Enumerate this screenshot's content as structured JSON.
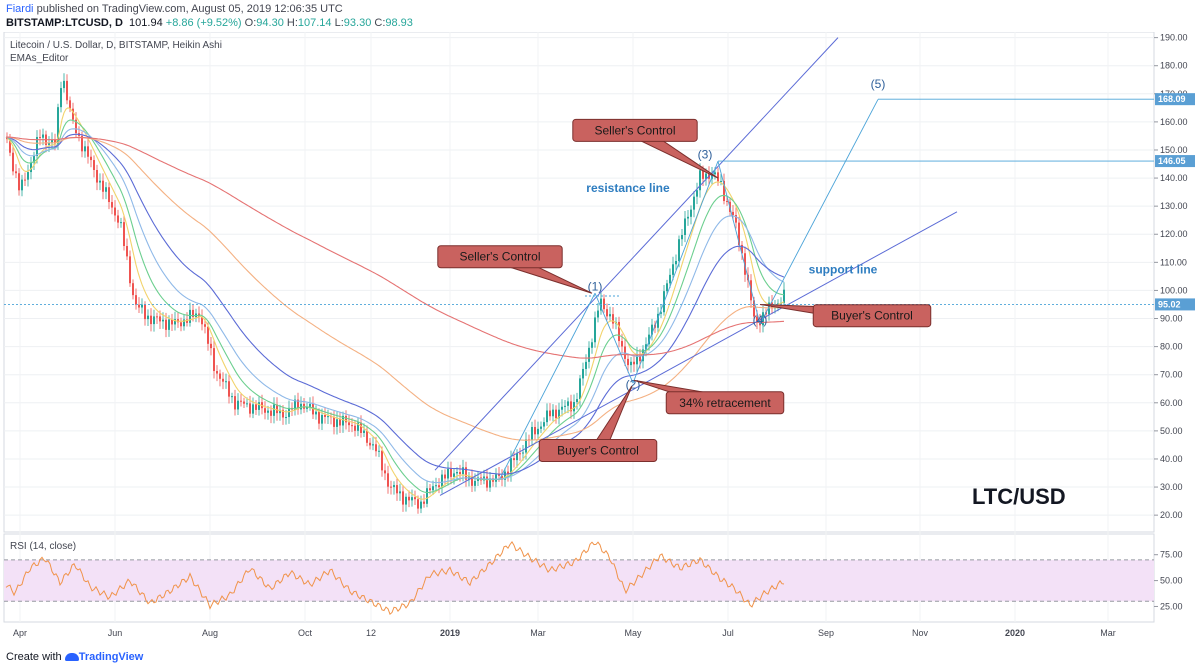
{
  "header": {
    "user": "Fiardi",
    "published_text": "published on TradingView.com, August 05, 2019 12:06:35 UTC",
    "symbol": "BITSTAMP:LTCUSD, D",
    "price": "101.94",
    "change": "+8.86 (+9.52%)",
    "o_label": "O:",
    "o_value": "94.30",
    "h_label": "H:",
    "h_value": "107.14",
    "l_label": "L:",
    "l_value": "93.30",
    "c_label": "C:",
    "c_value": "98.93"
  },
  "chart_title": "Litecoin / U.S. Dollar, D, BITSTAMP, Heikin Ashi",
  "indicator_label": "EMAs_Editor",
  "rsi_label": "RSI (14, close)",
  "big_label": "LTC/USD",
  "footer": {
    "prefix": "Create with",
    "brand": "TradingView"
  },
  "colors": {
    "up": "#26a69a",
    "down": "#ef5350",
    "callout_fill": "#c9625f",
    "callout_stroke": "#7b2f2d",
    "line_blue": "#5b6bd6",
    "fib_blue": "#4aa3d8",
    "rsi_line": "#f0934a",
    "rsi_band": "#f3e1f7",
    "annotation_text": "#2e7dc0"
  },
  "chart_data": {
    "type": "line",
    "title": "Litecoin / U.S. Dollar, D, BITSTAMP, Heikin Ashi",
    "price_axis": {
      "ticks": [
        20,
        30,
        40,
        50,
        60,
        70,
        80,
        90,
        100,
        110,
        120,
        130,
        140,
        150,
        160,
        170,
        180,
        190
      ],
      "ylim": [
        14,
        192
      ]
    },
    "x_ticks": [
      "Apr",
      "Jun",
      "Aug",
      "Oct",
      "12",
      "2019",
      "Mar",
      "May",
      "Jul",
      "Sep",
      "Nov",
      "2020",
      "Mar"
    ],
    "price_series": {
      "name": "LTCUSD",
      "points": [
        [
          0,
          163
        ],
        [
          20,
          135
        ],
        [
          40,
          155
        ],
        [
          55,
          152
        ],
        [
          62,
          178
        ],
        [
          72,
          160
        ],
        [
          95,
          142
        ],
        [
          120,
          124
        ],
        [
          135,
          95
        ],
        [
          150,
          90
        ],
        [
          175,
          88
        ],
        [
          200,
          92
        ],
        [
          215,
          72
        ],
        [
          235,
          60
        ],
        [
          260,
          58
        ],
        [
          285,
          56
        ],
        [
          300,
          60
        ],
        [
          320,
          55
        ],
        [
          355,
          52
        ],
        [
          375,
          44
        ],
        [
          390,
          30
        ],
        [
          405,
          26
        ],
        [
          420,
          24
        ],
        [
          435,
          31
        ],
        [
          455,
          36
        ],
        [
          475,
          32
        ],
        [
          500,
          33
        ],
        [
          515,
          40
        ],
        [
          530,
          48
        ],
        [
          550,
          56
        ],
        [
          575,
          60
        ],
        [
          588,
          78
        ],
        [
          600,
          96
        ],
        [
          612,
          90
        ],
        [
          630,
          72
        ],
        [
          645,
          80
        ],
        [
          660,
          93
        ],
        [
          680,
          118
        ],
        [
          700,
          140
        ],
        [
          712,
          142
        ],
        [
          720,
          138
        ],
        [
          735,
          124
        ],
        [
          745,
          108
        ],
        [
          755,
          88
        ],
        [
          765,
          92
        ],
        [
          775,
          95
        ],
        [
          785,
          98
        ]
      ]
    },
    "rsi": {
      "ticks": [
        25,
        50,
        75
      ],
      "ylim": [
        10,
        95
      ],
      "band": [
        30,
        70
      ],
      "points": [
        [
          0,
          52
        ],
        [
          15,
          38
        ],
        [
          30,
          62
        ],
        [
          45,
          72
        ],
        [
          60,
          48
        ],
        [
          75,
          66
        ],
        [
          90,
          44
        ],
        [
          110,
          34
        ],
        [
          130,
          50
        ],
        [
          150,
          28
        ],
        [
          170,
          40
        ],
        [
          190,
          54
        ],
        [
          210,
          26
        ],
        [
          230,
          36
        ],
        [
          250,
          62
        ],
        [
          270,
          42
        ],
        [
          290,
          58
        ],
        [
          310,
          46
        ],
        [
          330,
          60
        ],
        [
          350,
          40
        ],
        [
          370,
          30
        ],
        [
          390,
          20
        ],
        [
          410,
          28
        ],
        [
          430,
          56
        ],
        [
          450,
          60
        ],
        [
          470,
          48
        ],
        [
          490,
          66
        ],
        [
          510,
          86
        ],
        [
          530,
          72
        ],
        [
          550,
          60
        ],
        [
          575,
          68
        ],
        [
          595,
          88
        ],
        [
          610,
          72
        ],
        [
          625,
          40
        ],
        [
          640,
          54
        ],
        [
          660,
          74
        ],
        [
          680,
          62
        ],
        [
          700,
          70
        ],
        [
          720,
          52
        ],
        [
          735,
          42
        ],
        [
          750,
          26
        ],
        [
          765,
          38
        ],
        [
          785,
          50
        ]
      ]
    },
    "levels": [
      {
        "label": "168.09",
        "value": 168.09
      },
      {
        "label": "146.05",
        "value": 146.05
      },
      {
        "label": "95.02",
        "value": 95.02
      }
    ],
    "wave_labels": [
      {
        "text": "(1)",
        "x": 595,
        "y": 100
      },
      {
        "text": "(2)",
        "x": 633,
        "y": 65
      },
      {
        "text": "(3)",
        "x": 705,
        "y": 147
      },
      {
        "text": "(4)",
        "x": 760,
        "y": 88
      },
      {
        "text": "(5)",
        "x": 878,
        "y": 172
      }
    ],
    "text_annotations": [
      {
        "text": "resistance line",
        "x": 628,
        "y": 135
      },
      {
        "text": "support line",
        "x": 843,
        "y": 106
      }
    ],
    "callouts": [
      {
        "text": "Seller's Control",
        "box_x": 500,
        "box_y": 112,
        "target_x": 592,
        "target_y": 99
      },
      {
        "text": "Seller's Control",
        "box_x": 635,
        "box_y": 157,
        "target_x": 718,
        "target_y": 140
      },
      {
        "text": "Buyer's Control",
        "box_x": 872,
        "box_y": 91,
        "target_x": 760,
        "target_y": 95
      },
      {
        "text": "34% retracement",
        "box_x": 725,
        "box_y": 60,
        "target_x": 634,
        "target_y": 68
      },
      {
        "text": "Buyer's Control",
        "box_x": 598,
        "box_y": 43,
        "target_x": 632,
        "target_y": 66
      }
    ]
  }
}
